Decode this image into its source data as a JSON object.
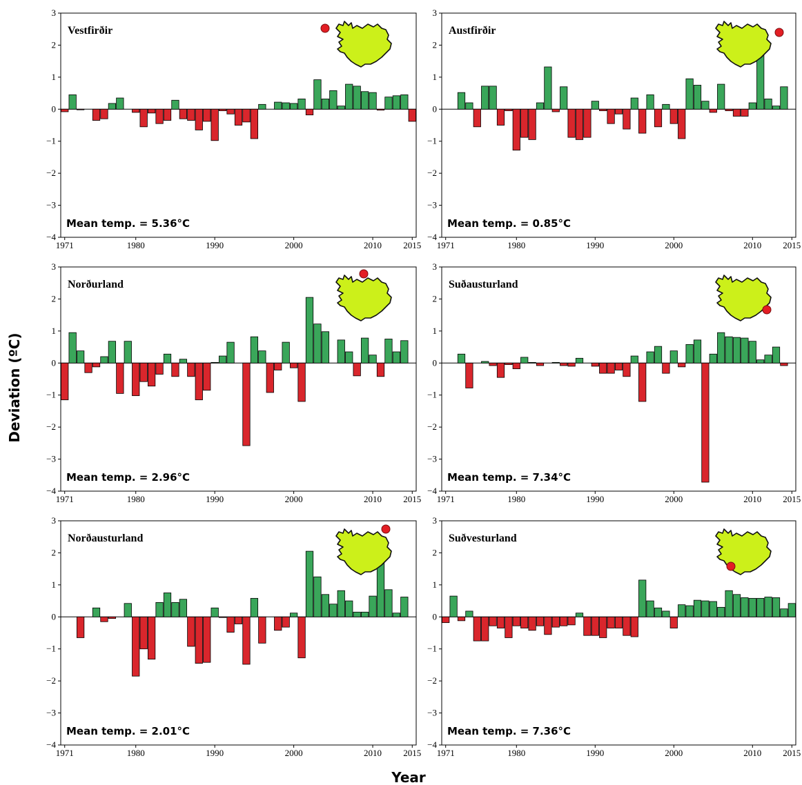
{
  "figure": {
    "ylabel": "Deviation (ºC)",
    "xlabel": "Year",
    "colors": {
      "positive": "#3aa65a",
      "negative": "#d9262c",
      "map_fill": "#ccf01a",
      "site_marker": "#e31e24"
    },
    "icons": [
      "iceland-map-icon",
      "location-dot-icon"
    ]
  },
  "chart_data": [
    {
      "type": "bar",
      "region": "Vestfirðir",
      "mean_label": "Mean temp. = 5.36°C",
      "site": "northwest",
      "x": [
        1971,
        1972,
        1973,
        1974,
        1975,
        1976,
        1977,
        1978,
        1979,
        1980,
        1981,
        1982,
        1983,
        1984,
        1985,
        1986,
        1987,
        1988,
        1989,
        1990,
        1991,
        1992,
        1993,
        1994,
        1995,
        1996,
        1997,
        1998,
        1999,
        2000,
        2001,
        2002,
        2003,
        2004,
        2005,
        2006,
        2007,
        2008,
        2009,
        2010,
        2011,
        2012,
        2013,
        2014,
        2015
      ],
      "values": [
        -0.08,
        0.45,
        -0.02,
        0,
        -0.35,
        -0.3,
        0.18,
        0.35,
        0,
        -0.1,
        -0.55,
        -0.12,
        -0.45,
        -0.35,
        0.28,
        -0.3,
        -0.35,
        -0.65,
        -0.38,
        -0.98,
        -0.05,
        -0.15,
        -0.5,
        -0.4,
        -0.92,
        0.15,
        0,
        0.22,
        0.2,
        0.18,
        0.32,
        -0.18,
        0.92,
        0.32,
        0.58,
        0.1,
        0.78,
        0.72,
        0.55,
        0.52,
        -0.03,
        0.38,
        0.42,
        0.45,
        -0.38
      ],
      "ylim": [
        -4,
        3
      ],
      "yticks": [
        "3",
        "2",
        "1",
        "0",
        "−1",
        "−2",
        "−3",
        "−4"
      ],
      "xticks": [
        "1971",
        "1980",
        "1990",
        "2000",
        "2010",
        "2015"
      ]
    },
    {
      "type": "bar",
      "region": "Austfirðir",
      "mean_label": "Mean temp. = 0.85°C",
      "site": "east-offshore",
      "x": [
        1971,
        1972,
        1973,
        1974,
        1975,
        1976,
        1977,
        1978,
        1979,
        1980,
        1981,
        1982,
        1983,
        1984,
        1985,
        1986,
        1987,
        1988,
        1989,
        1990,
        1991,
        1992,
        1993,
        1994,
        1995,
        1996,
        1997,
        1998,
        1999,
        2000,
        2001,
        2002,
        2003,
        2004,
        2005,
        2006,
        2007,
        2008,
        2009,
        2010,
        2011,
        2012,
        2013,
        2014,
        2015
      ],
      "values": [
        0,
        0,
        0.52,
        0.2,
        -0.55,
        0.72,
        0.72,
        -0.5,
        -0.05,
        -1.28,
        -0.88,
        -0.95,
        0.2,
        1.32,
        -0.08,
        0.7,
        -0.88,
        -0.95,
        -0.88,
        0.25,
        -0.05,
        -0.45,
        -0.15,
        -0.62,
        0.35,
        -0.75,
        0.45,
        -0.55,
        0.15,
        -0.45,
        -0.92,
        0.95,
        0.75,
        0.25,
        -0.1,
        0.78,
        -0.05,
        -0.22,
        -0.22,
        0.2,
        1.7,
        0.32,
        0.1,
        0.7,
        0
      ],
      "ylim": [
        -4,
        3
      ],
      "yticks": [
        "3",
        "2",
        "1",
        "0",
        "−1",
        "−2",
        "−3",
        "−4"
      ],
      "xticks": [
        "1971",
        "1980",
        "1990",
        "2000",
        "2010",
        "2015"
      ]
    },
    {
      "type": "bar",
      "region": "Norðurland",
      "mean_label": "Mean temp. = 2.96°C",
      "site": "north",
      "x": [
        1971,
        1972,
        1973,
        1974,
        1975,
        1976,
        1977,
        1978,
        1979,
        1980,
        1981,
        1982,
        1983,
        1984,
        1985,
        1986,
        1987,
        1988,
        1989,
        1990,
        1991,
        1992,
        1993,
        1994,
        1995,
        1996,
        1997,
        1998,
        1999,
        2000,
        2001,
        2002,
        2003,
        2004,
        2005,
        2006,
        2007,
        2008,
        2009,
        2010,
        2011,
        2012,
        2013,
        2014,
        2015
      ],
      "values": [
        -1.15,
        0.95,
        0.38,
        -0.3,
        -0.12,
        0.2,
        0.68,
        -0.95,
        0.68,
        -1.02,
        -0.58,
        -0.72,
        -0.35,
        0.28,
        -0.42,
        0.12,
        -0.42,
        -1.15,
        -0.85,
        0.02,
        0.22,
        0.65,
        0,
        -2.58,
        0.82,
        0.38,
        -0.92,
        -0.22,
        0.65,
        -0.15,
        -1.2,
        2.05,
        1.22,
        0.98,
        0,
        0.72,
        0.35,
        -0.4,
        0.78,
        0.25,
        -0.42,
        0.75,
        0.35,
        0.7,
        0
      ],
      "ylim": [
        -4,
        3
      ],
      "yticks": [
        "3",
        "2",
        "1",
        "0",
        "−1",
        "−2",
        "−3",
        "−4"
      ],
      "xticks": [
        "1971",
        "1980",
        "1990",
        "2000",
        "2010",
        "2015"
      ]
    },
    {
      "type": "bar",
      "region": "Suðausturland",
      "mean_label": "Mean temp. = 7.34°C",
      "site": "southeast-offshore",
      "x": [
        1971,
        1972,
        1973,
        1974,
        1975,
        1976,
        1977,
        1978,
        1979,
        1980,
        1981,
        1982,
        1983,
        1984,
        1985,
        1986,
        1987,
        1988,
        1989,
        1990,
        1991,
        1992,
        1993,
        1994,
        1995,
        1996,
        1997,
        1998,
        1999,
        2000,
        2001,
        2002,
        2003,
        2004,
        2005,
        2006,
        2007,
        2008,
        2009,
        2010,
        2011,
        2012,
        2013,
        2014,
        2015
      ],
      "values": [
        0,
        0,
        0.28,
        -0.78,
        0,
        0.05,
        -0.08,
        -0.45,
        -0.05,
        -0.18,
        0.18,
        0.02,
        -0.08,
        0,
        0.02,
        -0.08,
        -0.1,
        0.15,
        0,
        -0.1,
        -0.32,
        -0.32,
        -0.22,
        -0.42,
        0.22,
        -1.2,
        0.35,
        0.52,
        -0.32,
        0.38,
        -0.12,
        0.58,
        0.72,
        -3.72,
        0.28,
        0.95,
        0.82,
        0.8,
        0.78,
        0.68,
        0.1,
        0.25,
        0.5,
        -0.08,
        0
      ],
      "ylim": [
        -4,
        3
      ],
      "yticks": [
        "3",
        "2",
        "1",
        "0",
        "−1",
        "−2",
        "−3",
        "−4"
      ],
      "xticks": [
        "1971",
        "1980",
        "1990",
        "2000",
        "2010",
        "2015"
      ]
    },
    {
      "type": "bar",
      "region": "Norðausturland",
      "mean_label": "Mean temp. = 2.01°C",
      "site": "northeast",
      "x": [
        1971,
        1972,
        1973,
        1974,
        1975,
        1976,
        1977,
        1978,
        1979,
        1980,
        1981,
        1982,
        1983,
        1984,
        1985,
        1986,
        1987,
        1988,
        1989,
        1990,
        1991,
        1992,
        1993,
        1994,
        1995,
        1996,
        1997,
        1998,
        1999,
        2000,
        2001,
        2002,
        2003,
        2004,
        2005,
        2006,
        2007,
        2008,
        2009,
        2010,
        2011,
        2012,
        2013,
        2014,
        2015
      ],
      "values": [
        0,
        0,
        -0.65,
        0,
        0.28,
        -0.15,
        -0.05,
        0,
        0.42,
        -1.85,
        -1.0,
        -1.32,
        0.45,
        0.75,
        0.45,
        0.55,
        -0.92,
        -1.45,
        -1.42,
        0.28,
        -0.02,
        -0.48,
        -0.22,
        -1.48,
        0.58,
        -0.82,
        0,
        -0.42,
        -0.32,
        0.12,
        -1.28,
        2.05,
        1.25,
        0.7,
        0.4,
        0.82,
        0.5,
        0.15,
        0.15,
        0.65,
        1.68,
        0.85,
        0.12,
        0.62,
        0
      ],
      "ylim": [
        -4,
        3
      ],
      "yticks": [
        "3",
        "2",
        "1",
        "0",
        "−1",
        "−2",
        "−3",
        "−4"
      ],
      "xticks": [
        "1971",
        "1980",
        "1990",
        "2000",
        "2010",
        "2015"
      ]
    },
    {
      "type": "bar",
      "region": "Suðvesturland",
      "mean_label": "Mean temp. = 7.36°C",
      "site": "southwest",
      "x": [
        1971,
        1972,
        1973,
        1974,
        1975,
        1976,
        1977,
        1978,
        1979,
        1980,
        1981,
        1982,
        1983,
        1984,
        1985,
        1986,
        1987,
        1988,
        1989,
        1990,
        1991,
        1992,
        1993,
        1994,
        1995,
        1996,
        1997,
        1998,
        1999,
        2000,
        2001,
        2002,
        2003,
        2004,
        2005,
        2006,
        2007,
        2008,
        2009,
        2010,
        2011,
        2012,
        2013,
        2014,
        2015
      ],
      "values": [
        -0.18,
        0.65,
        -0.12,
        0.18,
        -0.75,
        -0.75,
        -0.28,
        -0.35,
        -0.65,
        -0.28,
        -0.35,
        -0.42,
        -0.28,
        -0.55,
        -0.32,
        -0.28,
        -0.25,
        0.12,
        -0.58,
        -0.58,
        -0.65,
        -0.35,
        -0.35,
        -0.58,
        -0.62,
        1.15,
        0.5,
        0.28,
        0.18,
        -0.35,
        0.38,
        0.35,
        0.52,
        0.5,
        0.48,
        0.3,
        0.82,
        0.7,
        0.6,
        0.58,
        0.58,
        0.62,
        0.6,
        0.25,
        0.42
      ],
      "ylim": [
        -4,
        3
      ],
      "yticks": [
        "3",
        "2",
        "1",
        "0",
        "−1",
        "−2",
        "−3",
        "−4"
      ],
      "xticks": [
        "1971",
        "1980",
        "1990",
        "2000",
        "2010",
        "2015"
      ]
    }
  ]
}
